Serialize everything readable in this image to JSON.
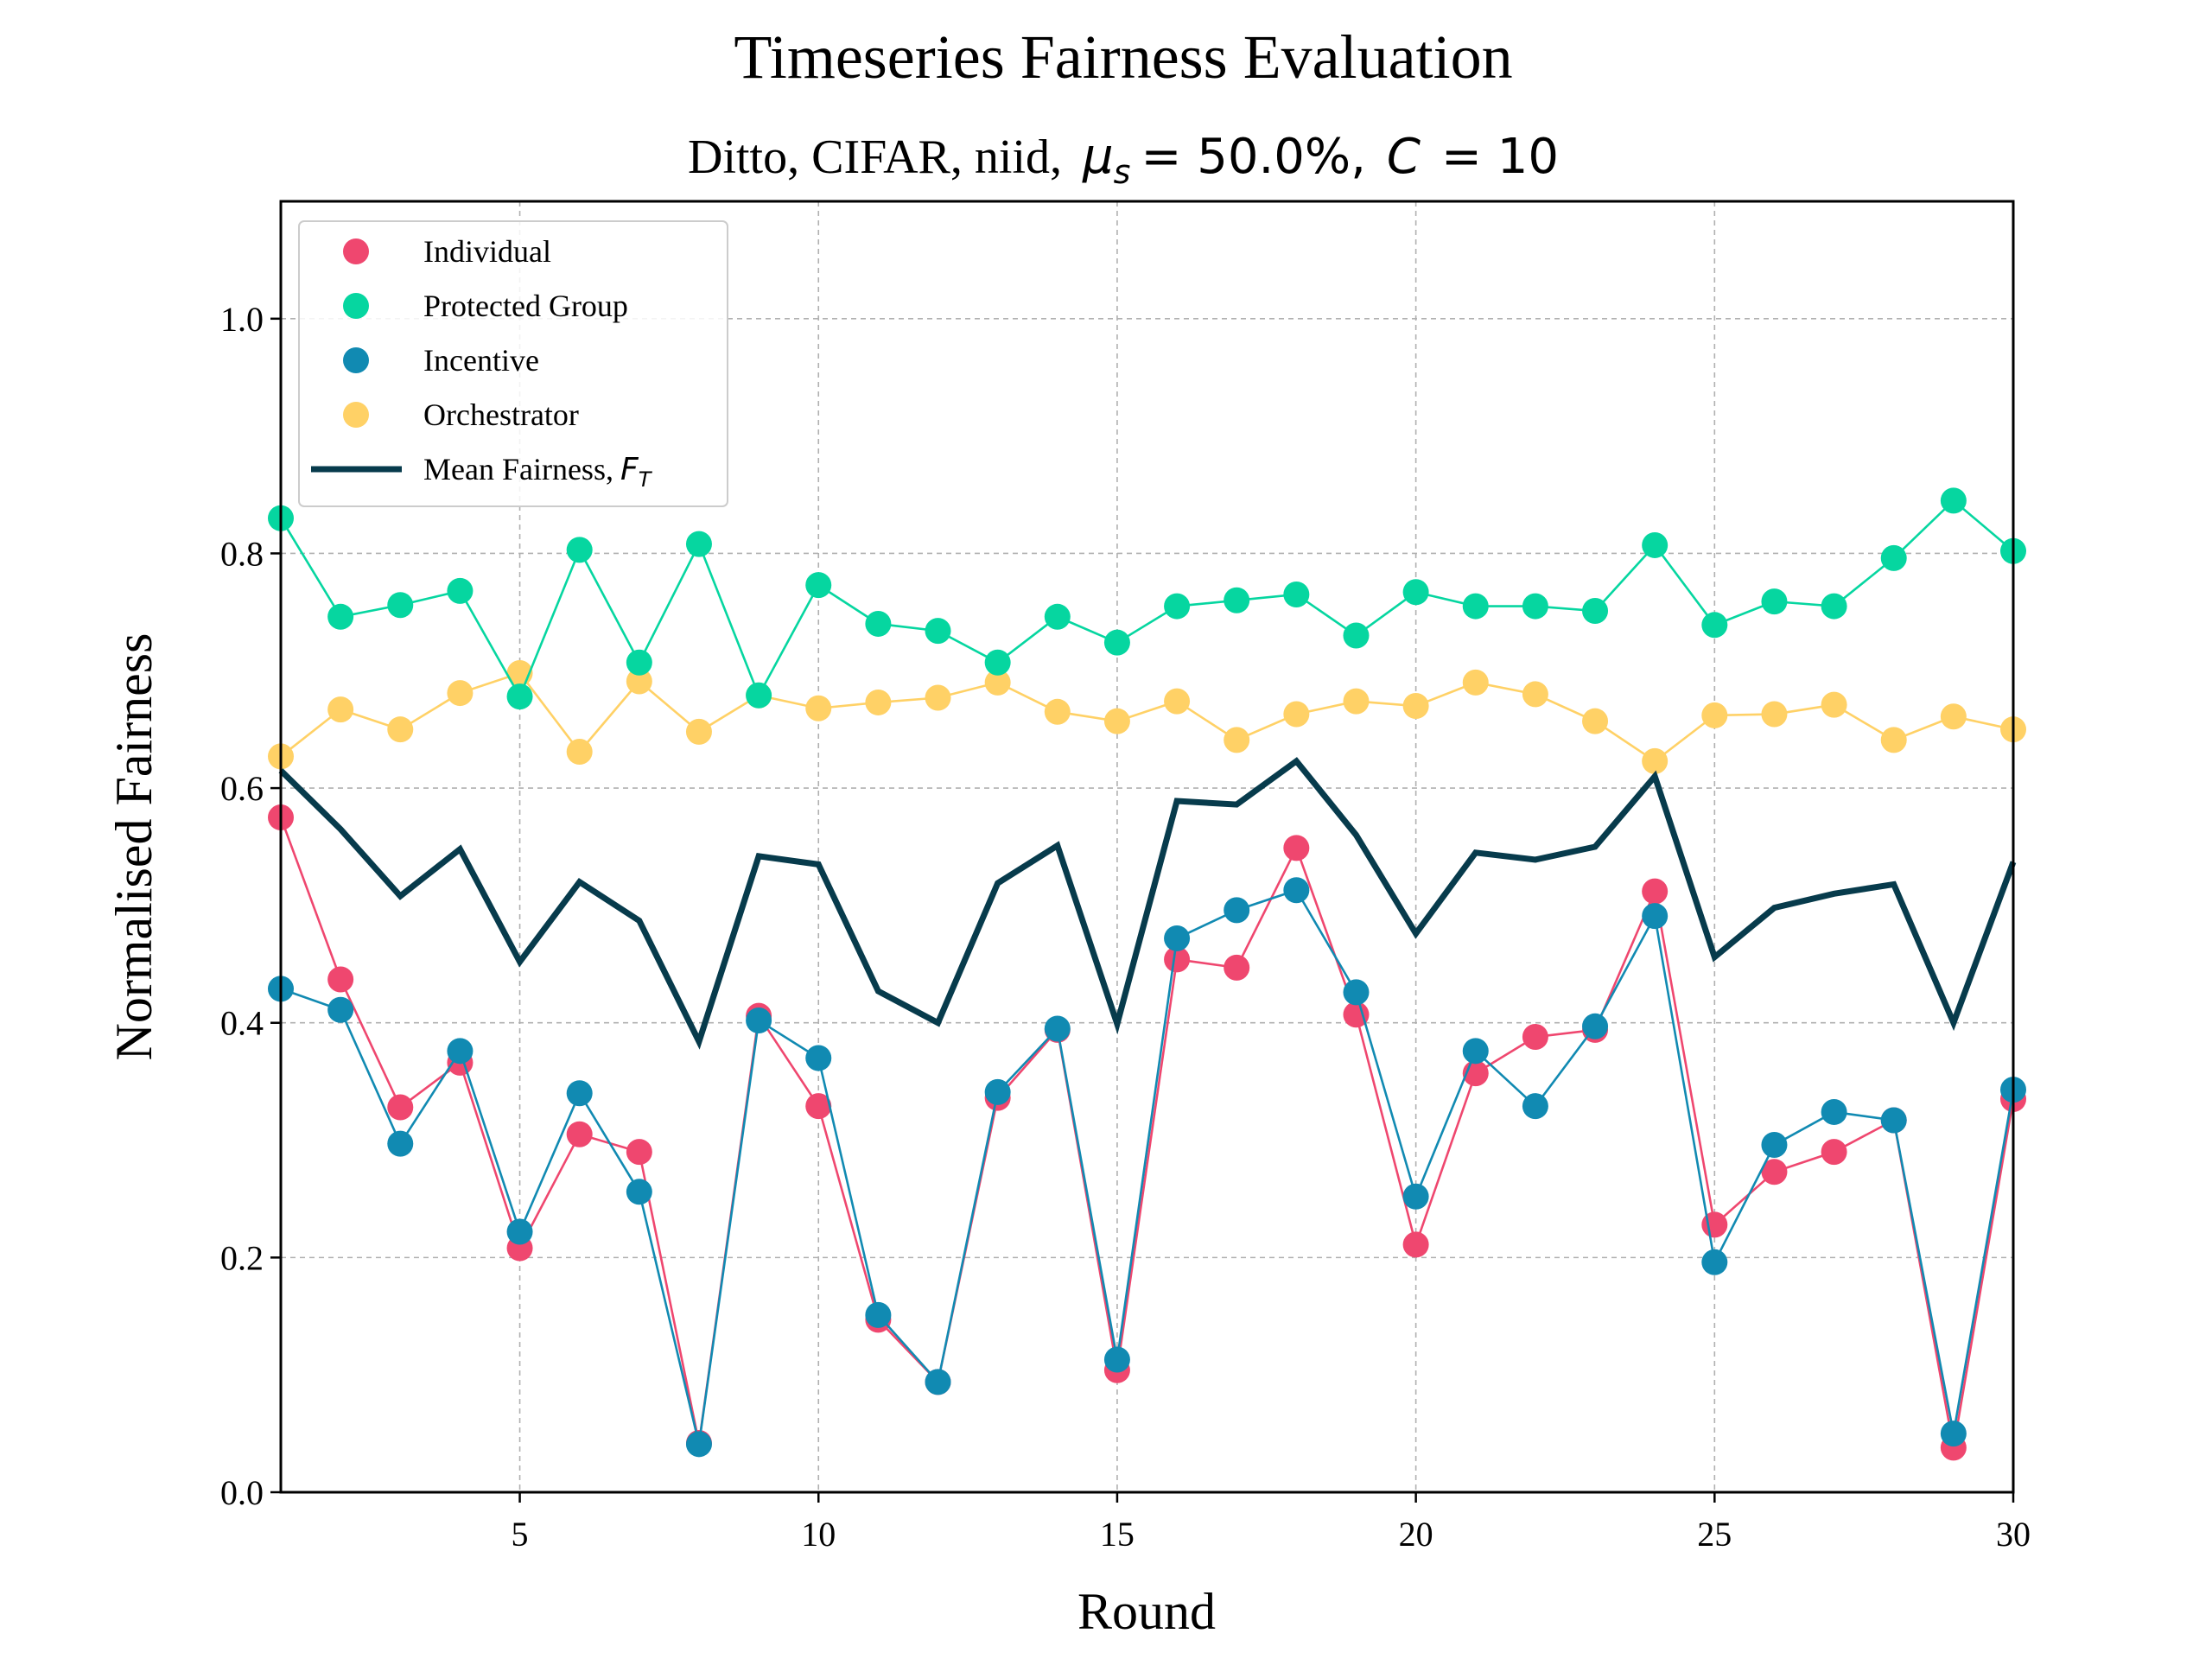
{
  "chart_data": {
    "type": "line",
    "title": "Timeseries Fairness Evaluation",
    "subtitle": {
      "prefix": "Ditto, CIFAR, niid,",
      "mu_symbol": "μ",
      "mu_sub": "s",
      "mu_value": "= 50.0%,",
      "c_symbol": "C",
      "c_value": "= 10"
    },
    "xlabel": "Round",
    "ylabel": "Normalised Fairness",
    "xlim": [
      1,
      30
    ],
    "ylim": [
      0,
      1.1
    ],
    "xticks": [
      5,
      10,
      15,
      20,
      25,
      30
    ],
    "xtick_labels": [
      "5",
      "10",
      "15",
      "20",
      "25",
      "30"
    ],
    "yticks": [
      0.0,
      0.2,
      0.4,
      0.6,
      0.8,
      1.0
    ],
    "ytick_labels": [
      "0.0",
      "0.2",
      "0.4",
      "0.6",
      "0.8",
      "1.0"
    ],
    "grid": true,
    "legend_position": "top-left",
    "x": [
      1,
      2,
      3,
      4,
      5,
      6,
      7,
      8,
      9,
      10,
      11,
      12,
      13,
      14,
      15,
      16,
      17,
      18,
      19,
      20,
      21,
      22,
      23,
      24,
      25,
      26,
      27,
      28,
      29,
      30
    ],
    "series": [
      {
        "name": "Individual",
        "color": "#ef476f",
        "marker": "circle",
        "values": [
          0.575,
          0.437,
          0.328,
          0.366,
          0.208,
          0.305,
          0.29,
          0.042,
          0.406,
          0.329,
          0.147,
          0.094,
          0.336,
          0.394,
          0.104,
          0.454,
          0.447,
          0.549,
          0.407,
          0.211,
          0.357,
          0.388,
          0.394,
          0.512,
          0.228,
          0.273,
          0.29,
          0.317,
          0.038,
          0.335
        ]
      },
      {
        "name": "Protected Group",
        "color": "#06d6a0",
        "marker": "circle",
        "values": [
          0.83,
          0.746,
          0.756,
          0.768,
          0.678,
          0.803,
          0.707,
          0.808,
          0.679,
          0.773,
          0.74,
          0.734,
          0.707,
          0.746,
          0.724,
          0.755,
          0.76,
          0.765,
          0.73,
          0.767,
          0.755,
          0.755,
          0.751,
          0.807,
          0.739,
          0.759,
          0.755,
          0.796,
          0.845,
          0.802
        ]
      },
      {
        "name": "Incentive",
        "color": "#118ab2",
        "marker": "circle",
        "values": [
          0.429,
          0.411,
          0.297,
          0.376,
          0.222,
          0.34,
          0.256,
          0.041,
          0.402,
          0.37,
          0.151,
          0.094,
          0.341,
          0.395,
          0.113,
          0.472,
          0.496,
          0.513,
          0.426,
          0.252,
          0.376,
          0.329,
          0.397,
          0.491,
          0.196,
          0.296,
          0.324,
          0.317,
          0.05,
          0.343
        ]
      },
      {
        "name": "Orchestrator",
        "color": "#ffd166",
        "marker": "circle",
        "values": [
          0.627,
          0.667,
          0.65,
          0.681,
          0.698,
          0.631,
          0.691,
          0.648,
          0.679,
          0.668,
          0.673,
          0.677,
          0.69,
          0.665,
          0.657,
          0.674,
          0.641,
          0.663,
          0.674,
          0.67,
          0.69,
          0.68,
          0.657,
          0.623,
          0.662,
          0.663,
          0.671,
          0.641,
          0.661,
          0.65
        ]
      },
      {
        "name": "Mean Fairness,",
        "name_math": "F",
        "name_math_sub": "T",
        "color": "#073b4c",
        "marker": "none",
        "values": [
          0.615,
          0.565,
          0.508,
          0.548,
          0.452,
          0.52,
          0.487,
          0.384,
          0.542,
          0.535,
          0.427,
          0.4,
          0.519,
          0.551,
          0.399,
          0.589,
          0.586,
          0.623,
          0.56,
          0.476,
          0.545,
          0.539,
          0.55,
          0.61,
          0.456,
          0.498,
          0.51,
          0.518,
          0.4,
          0.537
        ]
      }
    ]
  }
}
